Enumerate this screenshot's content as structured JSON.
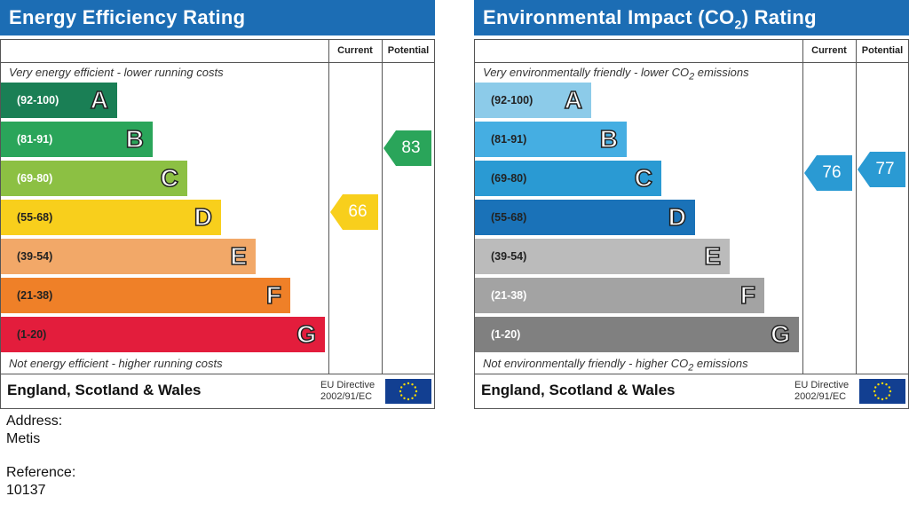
{
  "chart_data": [
    {
      "type": "bar",
      "title": "Energy Efficiency Rating",
      "title_sub": "",
      "title_suffix": "",
      "columns": [
        "Current",
        "Potential"
      ],
      "top_note": "Very energy efficient - lower running costs",
      "top_note_sub": "",
      "top_note_suffix": "",
      "bottom_note": "Not energy efficient - higher running costs",
      "bottom_note_sub": "",
      "bottom_note_suffix": "",
      "bands": [
        {
          "range": "(92-100)",
          "letter": "A",
          "color": "#1a7f55",
          "text": "#fff"
        },
        {
          "range": "(81-91)",
          "letter": "B",
          "color": "#2aa55a",
          "text": "#fff"
        },
        {
          "range": "(69-80)",
          "letter": "C",
          "color": "#8cc043",
          "text": "#fff"
        },
        {
          "range": "(55-68)",
          "letter": "D",
          "color": "#f8cf1c",
          "text": "#222"
        },
        {
          "range": "(39-54)",
          "letter": "E",
          "color": "#f2a868",
          "text": "#222"
        },
        {
          "range": "(21-38)",
          "letter": "F",
          "color": "#ef8028",
          "text": "#222"
        },
        {
          "range": "(1-20)",
          "letter": "G",
          "color": "#e31d3c",
          "text": "#222"
        }
      ],
      "current": {
        "value": "66",
        "band": "D",
        "color": "#f8cf1c",
        "text": "#fff"
      },
      "potential": {
        "value": "83",
        "band": "B",
        "color": "#2aa55a",
        "text": "#fff"
      },
      "footer": "England, Scotland & Wales",
      "directive": [
        "EU Directive",
        "2002/91/EC"
      ]
    },
    {
      "type": "bar",
      "title": "Environmental Impact (CO",
      "title_sub": "2",
      "title_suffix": ") Rating",
      "columns": [
        "Current",
        "Potential"
      ],
      "top_note": "Very environmentally friendly - lower CO",
      "top_note_sub": "2",
      "top_note_suffix": " emissions",
      "bottom_note": "Not environmentally friendly - higher CO",
      "bottom_note_sub": "2",
      "bottom_note_suffix": " emissions",
      "bands": [
        {
          "range": "(92-100)",
          "letter": "A",
          "color": "#8ccbe9",
          "text": "#222"
        },
        {
          "range": "(81-91)",
          "letter": "B",
          "color": "#45aee2",
          "text": "#222"
        },
        {
          "range": "(69-80)",
          "letter": "C",
          "color": "#2a9ad3",
          "text": "#222"
        },
        {
          "range": "(55-68)",
          "letter": "D",
          "color": "#1a72b8",
          "text": "#222"
        },
        {
          "range": "(39-54)",
          "letter": "E",
          "color": "#bbbbbb",
          "text": "#222"
        },
        {
          "range": "(21-38)",
          "letter": "F",
          "color": "#a3a3a3",
          "text": "#fff"
        },
        {
          "range": "(1-20)",
          "letter": "G",
          "color": "#808080",
          "text": "#fff"
        }
      ],
      "current": {
        "value": "76",
        "band": "C",
        "color": "#2a9ad3",
        "text": "#fff"
      },
      "potential": {
        "value": "77",
        "band": "C",
        "color": "#2a9ad3",
        "text": "#fff"
      },
      "footer": "England, Scotland & Wales",
      "directive": [
        "EU Directive",
        "2002/91/EC"
      ]
    }
  ],
  "address": {
    "label": "Address:",
    "value": "Metis"
  },
  "reference": {
    "label": "Reference:",
    "value": "10137"
  }
}
